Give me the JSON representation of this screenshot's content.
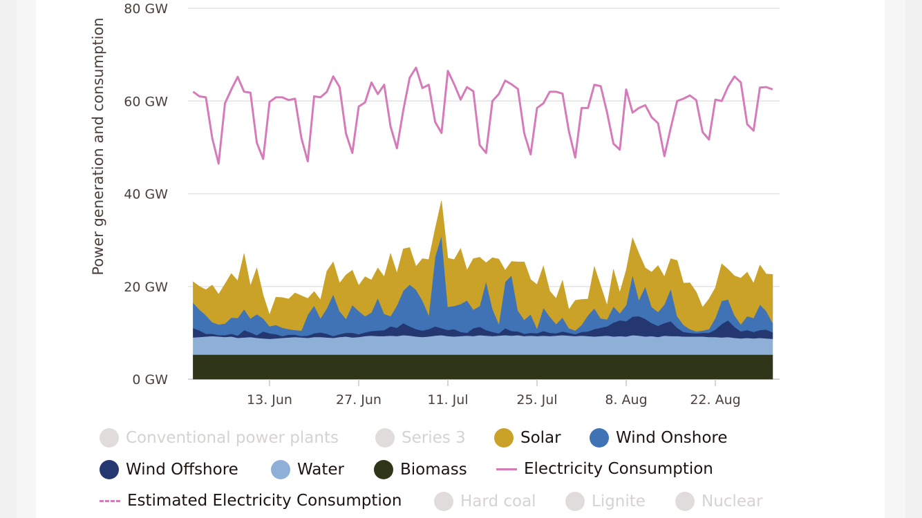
{
  "chart_data": {
    "type": "area",
    "ylabel": "Power generation and consumption",
    "y_ticks": [
      "0 GW",
      "20 GW",
      "40 GW",
      "60 GW",
      "80 GW"
    ],
    "ylim": [
      0,
      80
    ],
    "x_ticks": [
      {
        "label": "13. Jun",
        "day": 13
      },
      {
        "label": "27. Jun",
        "day": 27
      },
      {
        "label": "11. Jul",
        "day": 41
      },
      {
        "label": "25. Jul",
        "day": 55
      },
      {
        "label": "8. Aug",
        "day": 69
      },
      {
        "label": "22. Aug",
        "day": 83
      }
    ],
    "x_start_day": 1,
    "x_range_days": [
      1,
      92
    ],
    "series": [
      {
        "name": "Biomass",
        "color": "#2e3518",
        "stack": "const",
        "value": 5.3
      },
      {
        "name": "Water",
        "color": "#8fb0d6",
        "values": [
          3.7,
          3.8,
          3.9,
          4.0,
          3.9,
          3.8,
          3.9,
          3.6,
          3.7,
          3.8,
          3.6,
          3.5,
          3.4,
          3.5,
          3.6,
          3.7,
          3.8,
          3.7,
          3.6,
          3.8,
          3.8,
          3.7,
          3.6,
          3.8,
          3.9,
          3.7,
          3.8,
          4.0,
          4.1,
          4.0,
          4.0,
          4.1,
          4.0,
          4.2,
          4.1,
          3.9,
          3.8,
          3.9,
          4.1,
          4.2,
          4.0,
          3.9,
          4.0,
          4.1,
          4.0,
          4.2,
          4.1,
          4.0,
          4.1,
          4.2,
          4.1,
          4.2,
          4.0,
          4.1,
          4.0,
          4.1,
          4.0,
          4.1,
          4.2,
          4.1,
          4.0,
          4.1,
          4.0,
          3.9,
          4.0,
          4.1,
          3.9,
          4.0,
          3.9,
          4.2,
          4.1,
          3.9,
          4.0,
          3.8,
          4.1,
          4.0,
          4.0,
          3.9,
          3.9,
          3.9,
          3.9,
          3.8,
          3.8,
          3.7,
          3.8,
          3.6,
          3.5,
          3.6,
          3.5,
          3.6,
          3.5,
          3.4
        ]
      },
      {
        "name": "Wind Offshore",
        "color": "#253771",
        "values": [
          2.0,
          1.4,
          0.6,
          0.5,
          0.3,
          0.4,
          0.6,
          0.5,
          1.6,
          1.0,
          0.6,
          1.5,
          1.2,
          0.9,
          0.4,
          0.6,
          0.5,
          0.3,
          0.5,
          0.8,
          1.0,
          0.8,
          0.4,
          0.6,
          0.8,
          1.0,
          0.6,
          0.8,
          1.0,
          1.2,
          1.3,
          2.0,
          1.8,
          2.6,
          2.0,
          1.6,
          1.4,
          1.6,
          2.0,
          1.5,
          1.3,
          1.6,
          0.9,
          0.6,
          1.7,
          1.8,
          1.2,
          0.9,
          0.5,
          1.5,
          1.0,
          0.8,
          0.5,
          0.6,
          0.6,
          1.0,
          0.7,
          0.5,
          0.8,
          0.6,
          0.4,
          0.8,
          1.0,
          1.6,
          1.8,
          2.0,
          3.0,
          3.4,
          3.3,
          4.0,
          4.2,
          3.8,
          2.8,
          2.4,
          2.7,
          3.2,
          1.8,
          1.0,
          0.8,
          0.7,
          0.8,
          0.9,
          1.6,
          2.9,
          3.6,
          2.4,
          1.5,
          1.7,
          1.4,
          1.7,
          1.9,
          1.4
        ]
      },
      {
        "name": "Wind Onshore",
        "color": "#3f73b5",
        "values": [
          5.5,
          4.5,
          4.0,
          2.5,
          2.3,
          2.5,
          3.5,
          3.8,
          4.5,
          3.0,
          4.5,
          2.8,
          1.5,
          2.0,
          1.8,
          1.2,
          1.0,
          1.2,
          4.5,
          6.0,
          3.0,
          5.5,
          9.0,
          5.0,
          3.0,
          6.0,
          5.0,
          3.5,
          4.0,
          7.0,
          3.5,
          2.2,
          4.8,
          7.0,
          9.0,
          8.5,
          6.5,
          3.0,
          15.0,
          20.0,
          5.0,
          5.0,
          6.0,
          7.0,
          4.0,
          4.5,
          10.5,
          5.0,
          2.0,
          10.0,
          12.0,
          4.5,
          3.0,
          4.0,
          1.0,
          5.0,
          3.5,
          2.0,
          3.0,
          1.0,
          0.8,
          1.5,
          3.5,
          4.5,
          2.0,
          1.5,
          3.5,
          1.5,
          3.5,
          9.0,
          3.5,
          7.0,
          3.5,
          3.0,
          4.0,
          7.0,
          2.5,
          1.5,
          0.8,
          0.4,
          0.5,
          0.8,
          2.5,
          5.0,
          4.5,
          2.5,
          1.5,
          3.0,
          3.0,
          5.5,
          4.0,
          2.0
        ]
      },
      {
        "name": "Solar",
        "color": "#c9a227",
        "values": [
          4.5,
          5.0,
          5.5,
          8.0,
          6.5,
          8.5,
          9.5,
          8.0,
          12.0,
          7.0,
          10.0,
          5.0,
          2.5,
          6.0,
          6.5,
          6.5,
          8.0,
          7.5,
          3.5,
          3.0,
          4.0,
          8.0,
          7.0,
          6.0,
          9.5,
          7.5,
          5.5,
          8.5,
          7.0,
          6.5,
          8.0,
          13.5,
          7.0,
          9.0,
          8.0,
          5.0,
          9.0,
          12.0,
          6.0,
          7.5,
          10.5,
          10.0,
          12.0,
          6.5,
          11.0,
          10.5,
          4.0,
          11.0,
          14.0,
          2.5,
          3.0,
          10.5,
          12.5,
          7.5,
          9.5,
          9.0,
          5.5,
          5.5,
          8.0,
          4.0,
          6.5,
          5.5,
          3.5,
          9.0,
          7.0,
          3.0,
          8.0,
          4.5,
          7.5,
          8.0,
          10.0,
          4.0,
          7.5,
          10.0,
          6.0,
          6.5,
          12.0,
          9.0,
          10.0,
          8.5,
          5.0,
          6.5,
          6.5,
          8.0,
          6.5,
          8.5,
          10.0,
          9.5,
          7.5,
          8.5,
          8.0,
          10.5
        ]
      },
      {
        "name": "Electricity Consumption",
        "color": "#d67bb9",
        "type": "line",
        "values": [
          62.0,
          61.0,
          60.8,
          52.0,
          46.5,
          59.5,
          62.5,
          65.2,
          62.0,
          61.8,
          51.0,
          47.5,
          59.8,
          60.8,
          60.8,
          60.2,
          60.5,
          52.0,
          47.0,
          61.0,
          60.8,
          62.0,
          65.3,
          63.0,
          53.0,
          48.8,
          58.8,
          59.7,
          64.0,
          61.5,
          63.5,
          54.5,
          49.8,
          58.0,
          65.0,
          67.2,
          62.8,
          63.5,
          55.5,
          53.1,
          66.5,
          63.6,
          60.3,
          63.0,
          62.1,
          50.5,
          48.8,
          60.0,
          61.5,
          64.4,
          63.6,
          62.6,
          53.0,
          48.5,
          58.5,
          59.5,
          62.0,
          62.0,
          61.6,
          53.5,
          47.8,
          58.5,
          58.5,
          63.5,
          63.2,
          57.5,
          50.8,
          49.5,
          62.5,
          57.5,
          58.5,
          59.1,
          56.5,
          55.2,
          48.1,
          54.2,
          60.0,
          60.5,
          61.2,
          60.2,
          53.3,
          51.7,
          60.3,
          60.0,
          63.1,
          65.3,
          64.0,
          55.0,
          53.6,
          62.9,
          63.0,
          62.5
        ]
      }
    ]
  },
  "legend": {
    "items": [
      {
        "label": "Conventional power plants",
        "color": "#e0dcdb",
        "symbol": "dot",
        "active": false
      },
      {
        "label": "Series 3",
        "color": "#e0dcdb",
        "symbol": "dot",
        "active": false
      },
      {
        "label": "Solar",
        "color": "#c9a227",
        "symbol": "dot",
        "active": true
      },
      {
        "label": "Wind Onshore",
        "color": "#3f73b5",
        "symbol": "dot",
        "active": true
      },
      {
        "label": "Wind Offshore",
        "color": "#253771",
        "symbol": "dot",
        "active": true
      },
      {
        "label": "Water",
        "color": "#8fb0d6",
        "symbol": "dot",
        "active": true
      },
      {
        "label": "Biomass",
        "color": "#2e3518",
        "symbol": "dot",
        "active": true
      },
      {
        "label": "Electricity Consumption",
        "color": "#d67bb9",
        "symbol": "line",
        "active": true
      },
      {
        "label": "Estimated Electricity Consumption",
        "color": "#d67bb9",
        "symbol": "dash",
        "active": true
      },
      {
        "label": "Hard coal",
        "color": "#e0dcdb",
        "symbol": "dot",
        "active": false
      },
      {
        "label": "Lignite",
        "color": "#e0dcdb",
        "symbol": "dot",
        "active": false
      },
      {
        "label": "Nuclear",
        "color": "#e0dcdb",
        "symbol": "dot",
        "active": false
      }
    ]
  }
}
